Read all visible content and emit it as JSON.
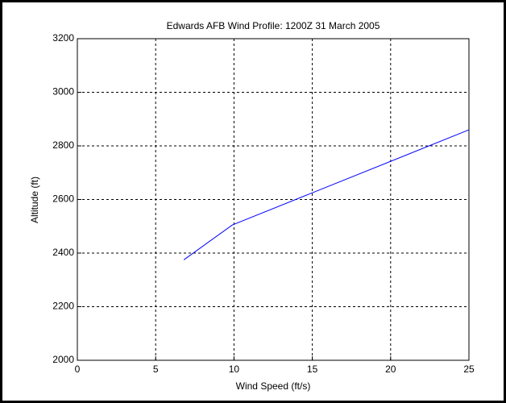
{
  "chart_data": {
    "type": "line",
    "title": "Edwards AFB Wind Profile: 1200Z 31 March 2005",
    "xlabel": "Wind Speed (ft/s)",
    "ylabel": "Altitude (ft)",
    "x": [
      6.8,
      9.9,
      25
    ],
    "values": [
      2375,
      2505,
      2860
    ],
    "color": "#0000ff",
    "xlim": [
      0,
      25
    ],
    "xticks": [
      0,
      5,
      10,
      15,
      20,
      25
    ],
    "ylim": [
      2000,
      3200
    ],
    "yticks": [
      2000,
      2200,
      2400,
      2600,
      2800,
      3000,
      3200
    ],
    "grid": true
  }
}
